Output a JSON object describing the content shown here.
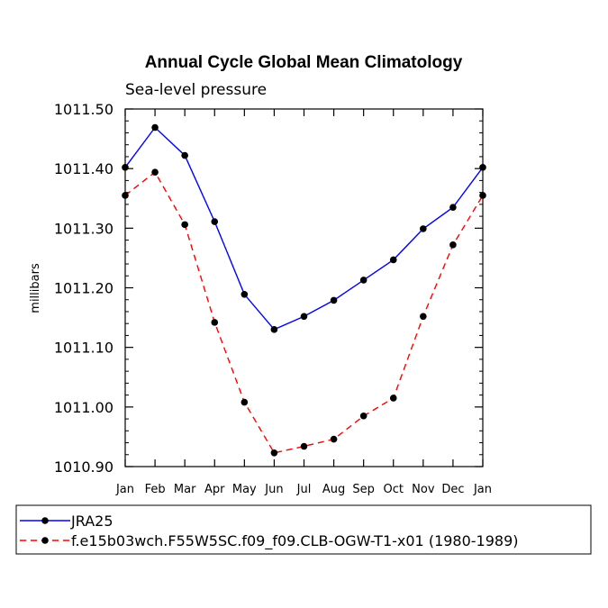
{
  "chart_data": {
    "type": "line",
    "title": "Annual Cycle Global Mean Climatology",
    "subtitle": "Sea-level pressure",
    "xlabel": "",
    "ylabel": "millibars",
    "categories": [
      "Jan",
      "Feb",
      "Mar",
      "Apr",
      "May",
      "Jun",
      "Jul",
      "Aug",
      "Sep",
      "Oct",
      "Nov",
      "Dec",
      "Jan"
    ],
    "ylim": [
      1010.9,
      1011.5
    ],
    "yticks": [
      1010.9,
      1011.0,
      1011.1,
      1011.2,
      1011.3,
      1011.4,
      1011.5
    ],
    "ytick_labels": [
      "1010.90",
      "1011.00",
      "1011.10",
      "1011.20",
      "1011.30",
      "1011.40",
      "1011.50"
    ],
    "series": [
      {
        "name": "JRA25",
        "color": "#0000ff",
        "dashed": false,
        "values": [
          1011.402,
          1011.469,
          1011.422,
          1011.311,
          1011.189,
          1011.13,
          1011.152,
          1011.179,
          1011.213,
          1011.247,
          1011.299,
          1011.335,
          1011.402
        ]
      },
      {
        "name": "f.e15b03wch.F55W5SC.f09_f09.CLB-OGW-T1-x01 (1980-1989)",
        "color": "#ff0000",
        "dashed": true,
        "values": [
          1011.355,
          1011.394,
          1011.306,
          1011.142,
          1011.008,
          1010.923,
          1010.934,
          1010.946,
          1010.985,
          1011.015,
          1011.152,
          1011.272,
          1011.355
        ]
      }
    ],
    "legend_position": "bottom"
  }
}
